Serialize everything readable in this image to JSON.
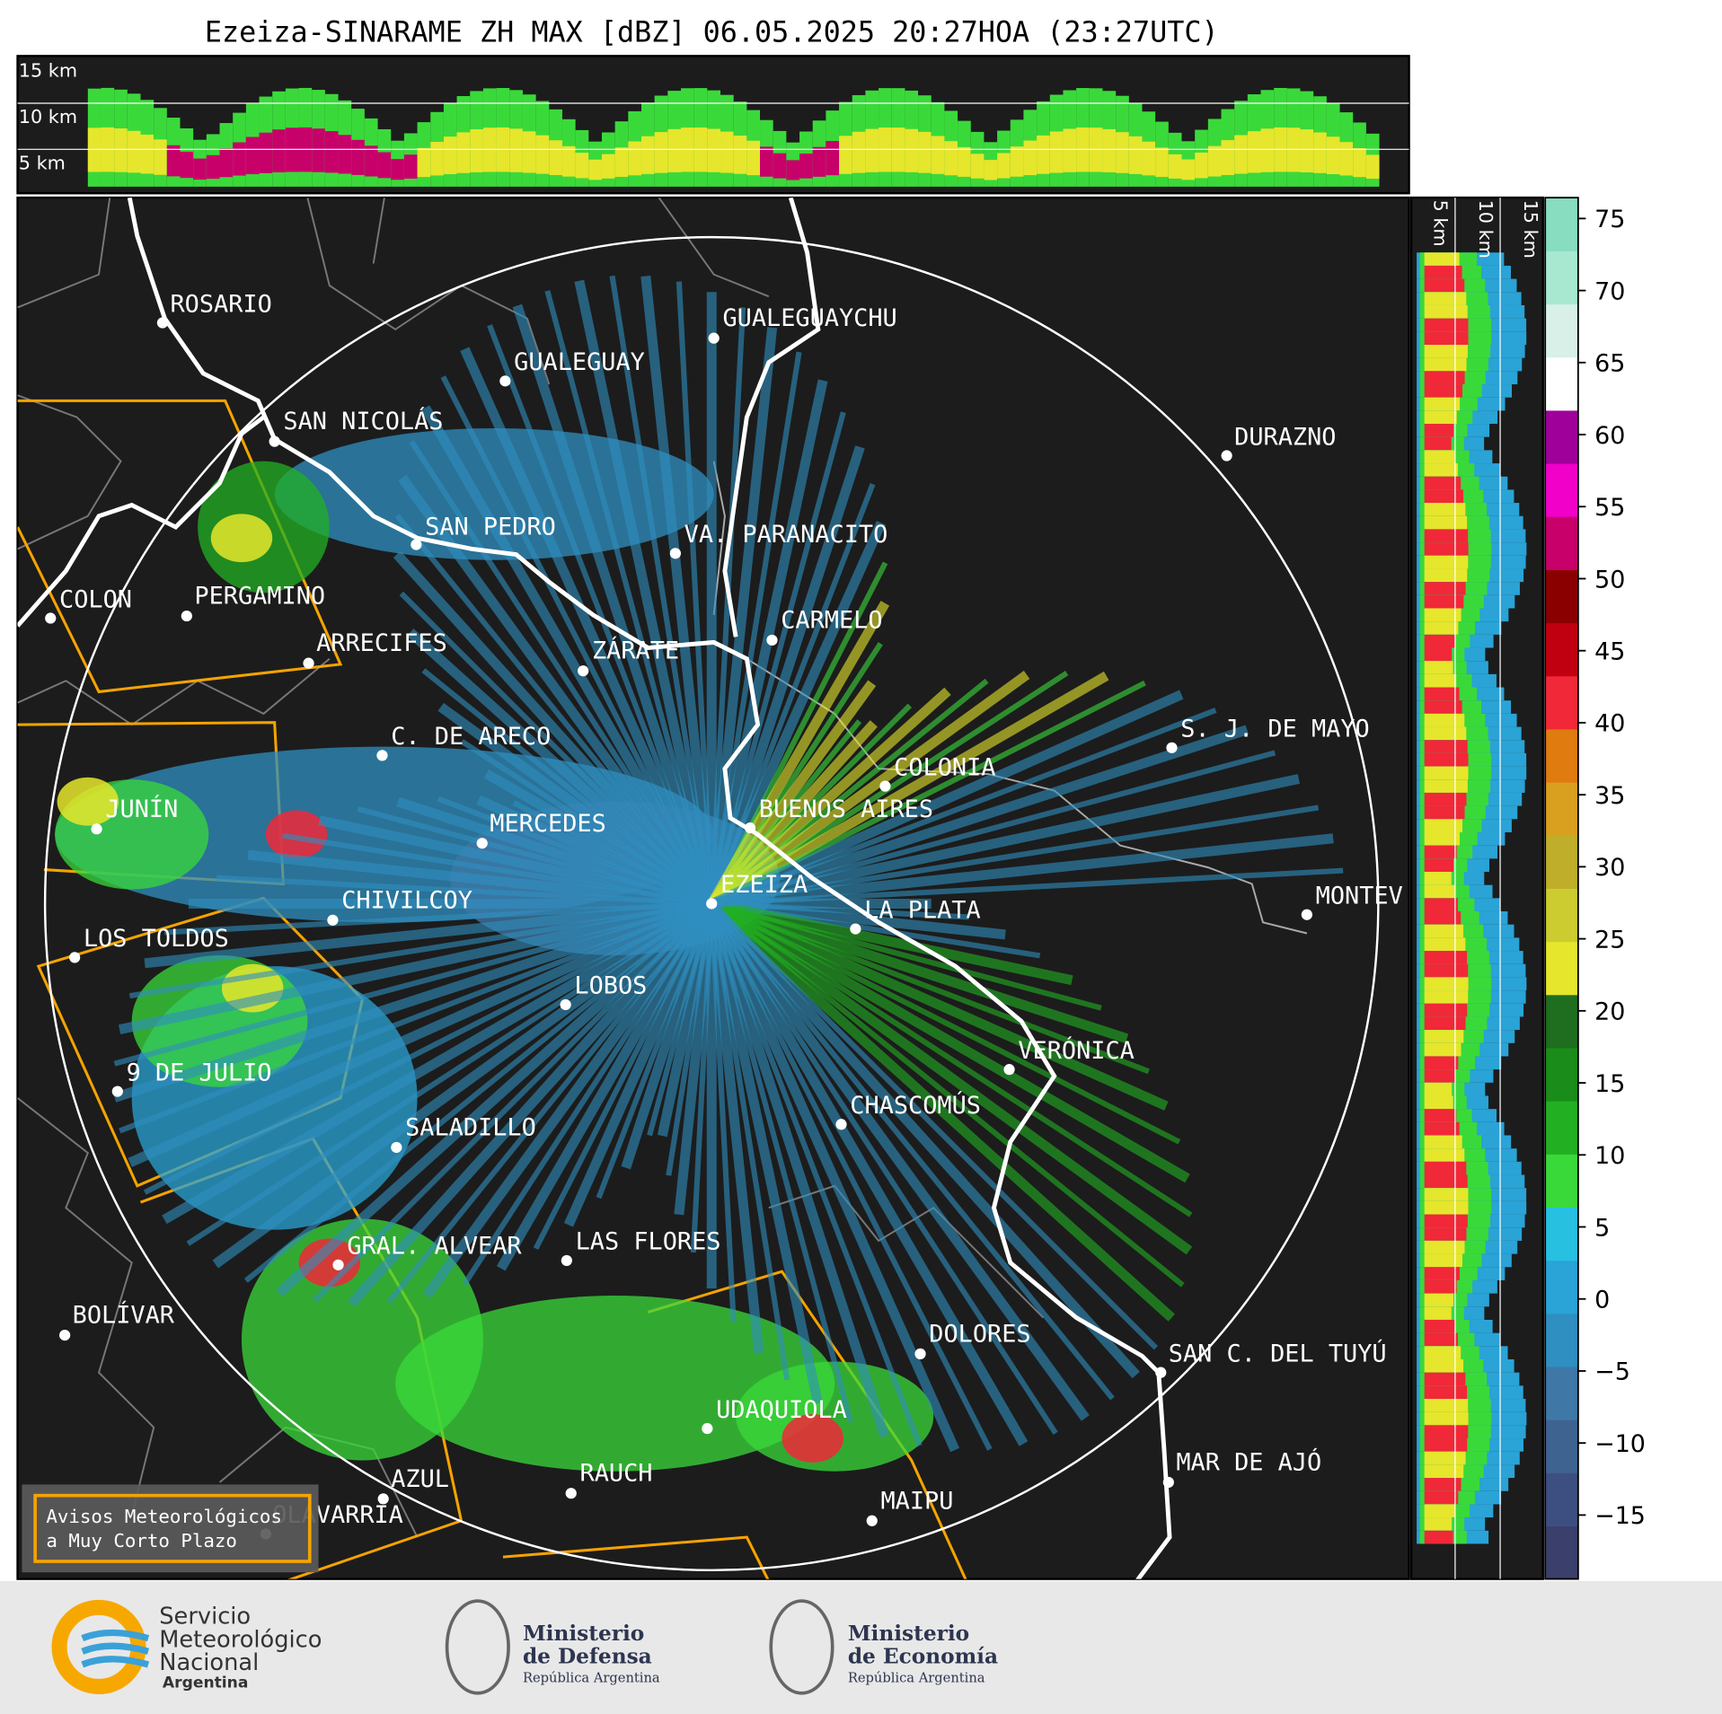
{
  "title": "Ezeiza-SINARAME ZH MAX [dBZ] 06.05.2025 20:27HOA (23:27UTC)",
  "top_panel": {
    "labels": [
      "15 km",
      "10 km",
      "5 km"
    ]
  },
  "side_panel": {
    "labels": [
      "5 km",
      "10 km",
      "15 km"
    ]
  },
  "map": {
    "cities": [
      "ROSARIO",
      "GUALEGUAYCHU",
      "GUALEGUAY",
      "SAN NICOLÁS",
      "DURAZNO",
      "SAN PEDRO",
      "VA. PARANACITO",
      "COLON",
      "PERGAMINO",
      "CARMELO",
      "ARRECIFES",
      "ZÁRATE",
      "S. J. DE MAYO",
      "C. DE ARECO",
      "COLONIA",
      "BUENOS AIRES",
      "JUNÍN",
      "MERCEDES",
      "EZEIZA",
      "MONTEV",
      "LA PLATA",
      "CHIVILCOY",
      "LOS TOLDOS",
      "LOBOS",
      "VERÓNICA",
      "9 DE JULIO",
      "CHASCOMÚS",
      "SALADILLO",
      "LAS FLORES",
      "GRAL. ALVEAR",
      "BOLÍVAR",
      "DOLORES",
      "SAN C. DEL TUYÚ",
      "UDAQUIOLA",
      "MAR DE AJÓ",
      "RAUCH",
      "AZUL",
      "OLAVARRÍA",
      "MAIPU"
    ],
    "legend_box": [
      "Avisos Meteorológicos",
      "a Muy Corto Plazo"
    ]
  },
  "colorbar": {
    "ticks": [
      "75",
      "70",
      "65",
      "60",
      "55",
      "50",
      "45",
      "40",
      "35",
      "30",
      "25",
      "20",
      "15",
      "10",
      "5",
      "0",
      "−5",
      "−10",
      "−15"
    ]
  },
  "footer": {
    "smn": [
      "Servicio",
      "Meteorológico",
      "Nacional",
      "Argentina"
    ],
    "defensa": [
      "Ministerio",
      "de Defensa",
      "República Argentina"
    ],
    "economia": [
      "Ministerio",
      "de Economía",
      "República Argentina"
    ]
  }
}
